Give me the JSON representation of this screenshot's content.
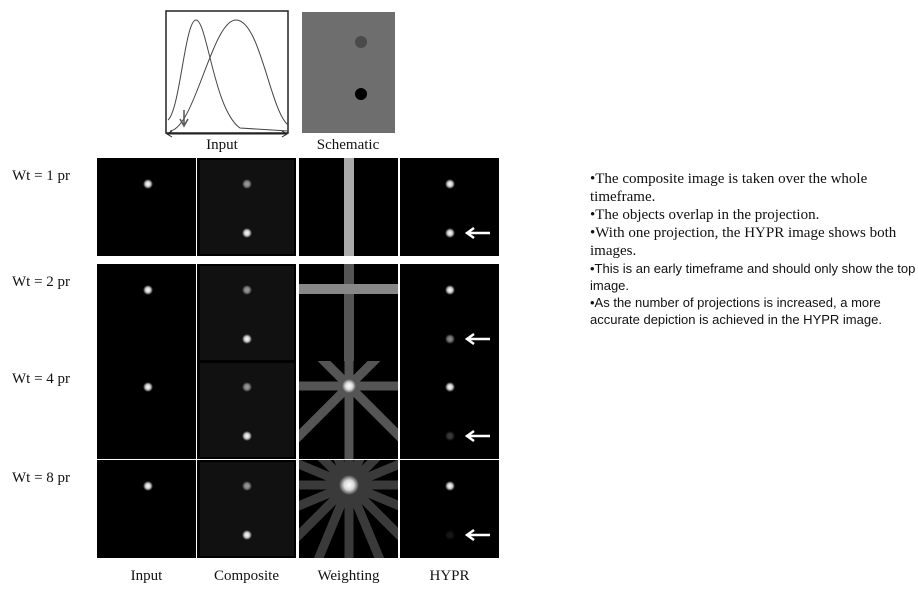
{
  "header": {
    "input_label": "Input",
    "schematic_label": "Schematic"
  },
  "rows": [
    "Wt = 1 pr",
    "Wt = 2 pr",
    "Wt = 4 pr",
    "Wt = 8 pr"
  ],
  "columns": [
    "Input",
    "Composite",
    "Weighting",
    "HYPR"
  ],
  "bullets": [
    "•The composite image is taken over the whole timeframe.",
    "•The objects overlap in the projection.",
    "•With one projection, the HYPR image shows both images.",
    "•This is an early timeframe and should only show the top image.",
    "•As the number of projections is increased, a more accurate depiction is achieved in the HYPR image."
  ]
}
